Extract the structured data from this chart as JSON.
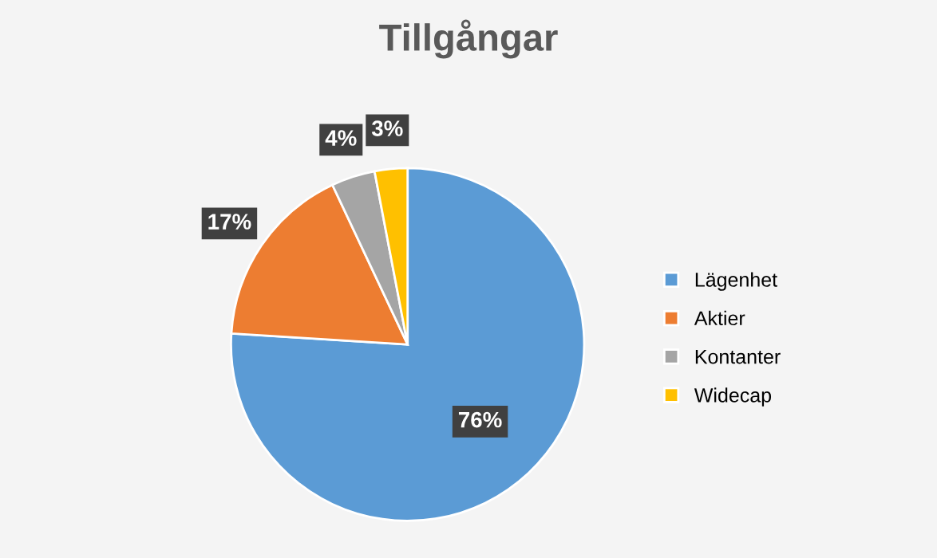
{
  "chart_data": {
    "type": "pie",
    "title": "Tillgångar",
    "categories": [
      "Lägenhet",
      "Aktier",
      "Kontanter",
      "Widecap"
    ],
    "values": [
      76,
      17,
      4,
      3
    ],
    "colors": [
      "#5b9bd5",
      "#ed7d31",
      "#a5a5a5",
      "#ffc000"
    ],
    "value_labels": [
      "76%",
      "17%",
      "4%",
      "3%"
    ],
    "legend": "right"
  }
}
